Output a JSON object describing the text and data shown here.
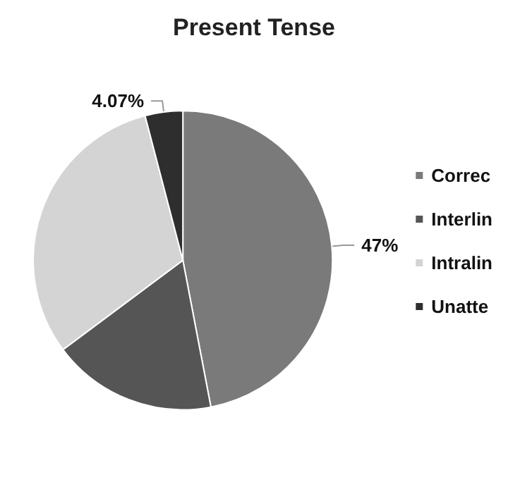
{
  "chart_data": {
    "type": "pie",
    "title": "Present Tense",
    "categories": [
      "Correc",
      "Interlin",
      "Intralin",
      "Unatte"
    ],
    "values": [
      47,
      17.8,
      31.13,
      4.07
    ],
    "colors": [
      "#7a7a7a",
      "#555555",
      "#d4d4d4",
      "#2e2e2e"
    ],
    "value_labels": [
      "47%",
      null,
      null,
      "4.07%"
    ],
    "legend": "right"
  }
}
